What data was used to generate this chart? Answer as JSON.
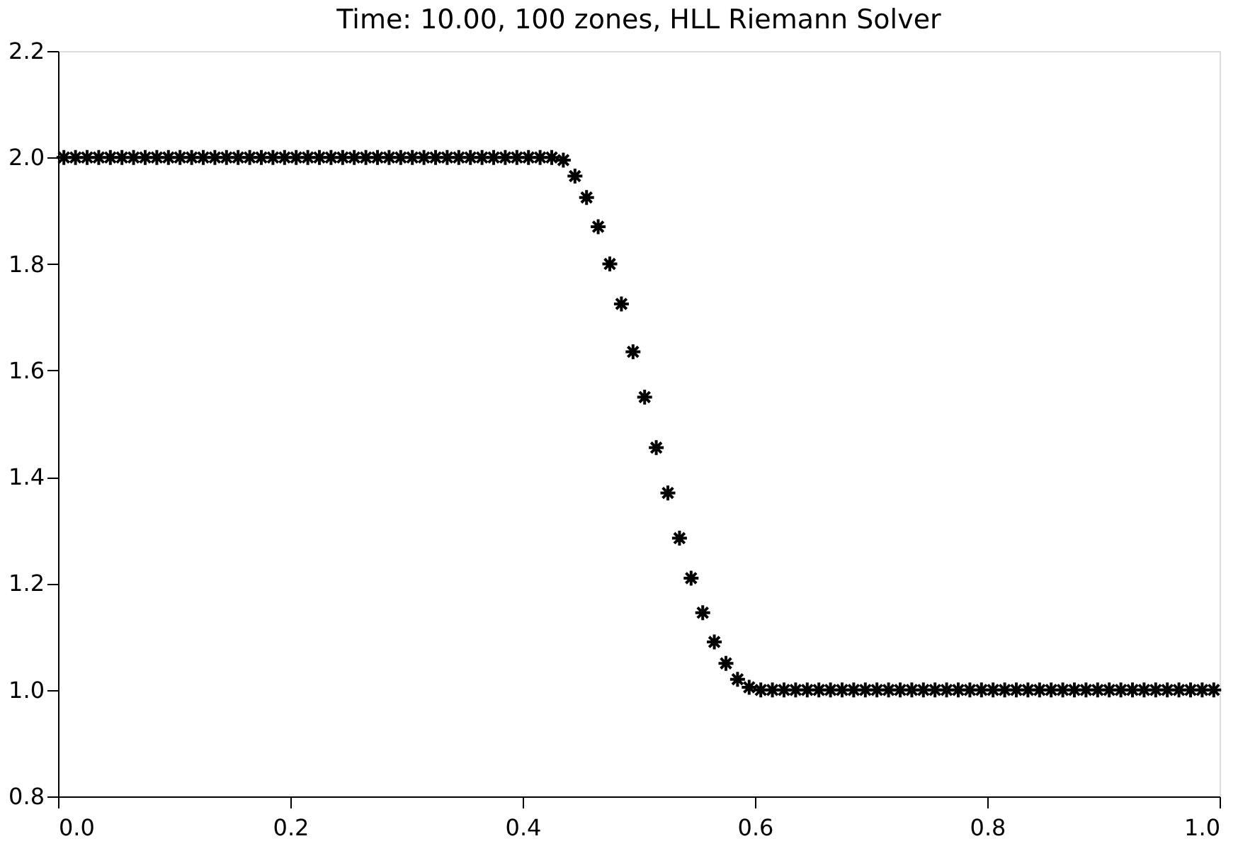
{
  "chart_data": {
    "type": "scatter",
    "title": "Time:  10.00, 100 zones, HLL Riemann Solver",
    "x": [
      0.005,
      0.015,
      0.025,
      0.035,
      0.045,
      0.055,
      0.065,
      0.075,
      0.085,
      0.095,
      0.105,
      0.115,
      0.125,
      0.135,
      0.145,
      0.155,
      0.165,
      0.175,
      0.185,
      0.195,
      0.205,
      0.215,
      0.225,
      0.235,
      0.245,
      0.255,
      0.265,
      0.275,
      0.285,
      0.295,
      0.305,
      0.315,
      0.325,
      0.335,
      0.345,
      0.355,
      0.365,
      0.375,
      0.385,
      0.395,
      0.405,
      0.415,
      0.425,
      0.435,
      0.445,
      0.455,
      0.465,
      0.475,
      0.485,
      0.495,
      0.505,
      0.515,
      0.525,
      0.535,
      0.545,
      0.555,
      0.565,
      0.575,
      0.585,
      0.595,
      0.605,
      0.615,
      0.625,
      0.635,
      0.645,
      0.655,
      0.665,
      0.675,
      0.685,
      0.695,
      0.705,
      0.715,
      0.725,
      0.735,
      0.745,
      0.755,
      0.765,
      0.775,
      0.785,
      0.795,
      0.805,
      0.815,
      0.825,
      0.835,
      0.845,
      0.855,
      0.865,
      0.875,
      0.885,
      0.895,
      0.905,
      0.915,
      0.925,
      0.935,
      0.945,
      0.955,
      0.965,
      0.975,
      0.985,
      0.995
    ],
    "series": [
      {
        "color": "#000000",
        "values": [
          2.0,
          2.0,
          2.0,
          2.0,
          2.0,
          2.0,
          2.0,
          2.0,
          2.0,
          2.0,
          2.0,
          2.0,
          2.0,
          2.0,
          2.0,
          2.0,
          2.0,
          2.0,
          2.0,
          2.0,
          2.0,
          2.0,
          2.0,
          2.0,
          2.0,
          2.0,
          2.0,
          2.0,
          2.0,
          2.0,
          2.0,
          2.0,
          2.0,
          2.0,
          2.0,
          2.0,
          2.0,
          2.0,
          2.0,
          2.0,
          2.0,
          2.0,
          2.0,
          1.995,
          1.965,
          1.925,
          1.87,
          1.8,
          1.725,
          1.635,
          1.55,
          1.455,
          1.37,
          1.285,
          1.21,
          1.145,
          1.09,
          1.05,
          1.02,
          1.005,
          1.0,
          1.0,
          1.0,
          1.0,
          1.0,
          1.0,
          1.0,
          1.0,
          1.0,
          1.0,
          1.0,
          1.0,
          1.0,
          1.0,
          1.0,
          1.0,
          1.0,
          1.0,
          1.0,
          1.0,
          1.0,
          1.0,
          1.0,
          1.0,
          1.0,
          1.0,
          1.0,
          1.0,
          1.0,
          1.0,
          1.0,
          1.0,
          1.0,
          1.0,
          1.0,
          1.0,
          1.0,
          1.0,
          1.0,
          1.0
        ]
      }
    ],
    "xlim": [
      0.0,
      1.0
    ],
    "xticks": [
      {
        "value": 0,
        "label": "0.0"
      },
      0.2,
      0.4,
      0.6,
      0.8,
      {
        "value": 1,
        "label": "1.0"
      }
    ],
    "ylim": [
      0.8,
      2.2
    ],
    "yticks": [
      0.8,
      {
        "value": 1,
        "label": "1.0"
      },
      1.2,
      1.4,
      1.6,
      1.8,
      {
        "value": 2,
        "label": "2.0"
      },
      2.2
    ],
    "marker": "cross",
    "grid": false,
    "legend": false
  }
}
